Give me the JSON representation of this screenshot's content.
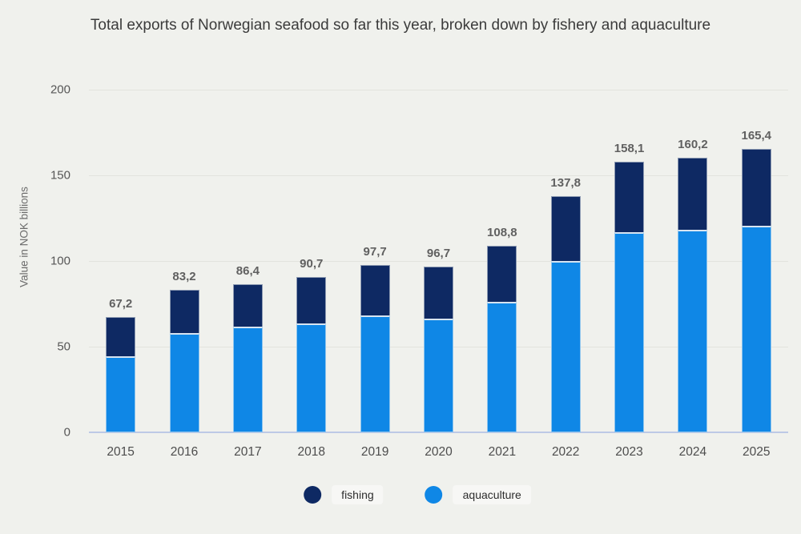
{
  "title": "Total exports of Norwegian seafood so far this year, broken down by fishery and aquaculture",
  "y_axis": {
    "title": "Value in NOK billions",
    "ticks": [
      "200",
      "150",
      "100",
      "50",
      "0"
    ]
  },
  "legend": {
    "items": [
      {
        "label": "fishing",
        "color": "#0e2963"
      },
      {
        "label": "aquaculture",
        "color": "#0f87e6"
      }
    ]
  },
  "colors": {
    "background": "#f0f1ed",
    "fishing": "#0e2963",
    "aquaculture": "#0f87e6",
    "gridline": "#e2e3de",
    "baseline": "#bdc9e6"
  },
  "chart_data": {
    "type": "bar",
    "stacked": true,
    "categories": [
      "2015",
      "2016",
      "2017",
      "2018",
      "2019",
      "2020",
      "2021",
      "2022",
      "2023",
      "2024",
      "2025"
    ],
    "series": [
      {
        "name": "fishing",
        "color": "#0e2963",
        "values": [
          22.7,
          25.2,
          24.9,
          27.2,
          29.7,
          30.2,
          32.8,
          37.8,
          41.1,
          42.2,
          44.9
        ]
      },
      {
        "name": "aquaculture",
        "color": "#0f87e6",
        "values": [
          44.5,
          58.0,
          61.5,
          63.5,
          68.0,
          66.5,
          76.0,
          100.0,
          117.0,
          118.0,
          120.5
        ]
      }
    ],
    "total_labels": [
      "67,2",
      "83,2",
      "86,4",
      "90,7",
      "97,7",
      "96,7",
      "108,8",
      "137,8",
      "158,1",
      "160,2",
      "165,4"
    ],
    "title": "Total exports of Norwegian seafood so far this year, broken down by fishery and aquaculture",
    "xlabel": "",
    "ylabel": "Value in NOK billions",
    "ylim": [
      0,
      200
    ],
    "grid": true,
    "legend_position": "bottom"
  }
}
